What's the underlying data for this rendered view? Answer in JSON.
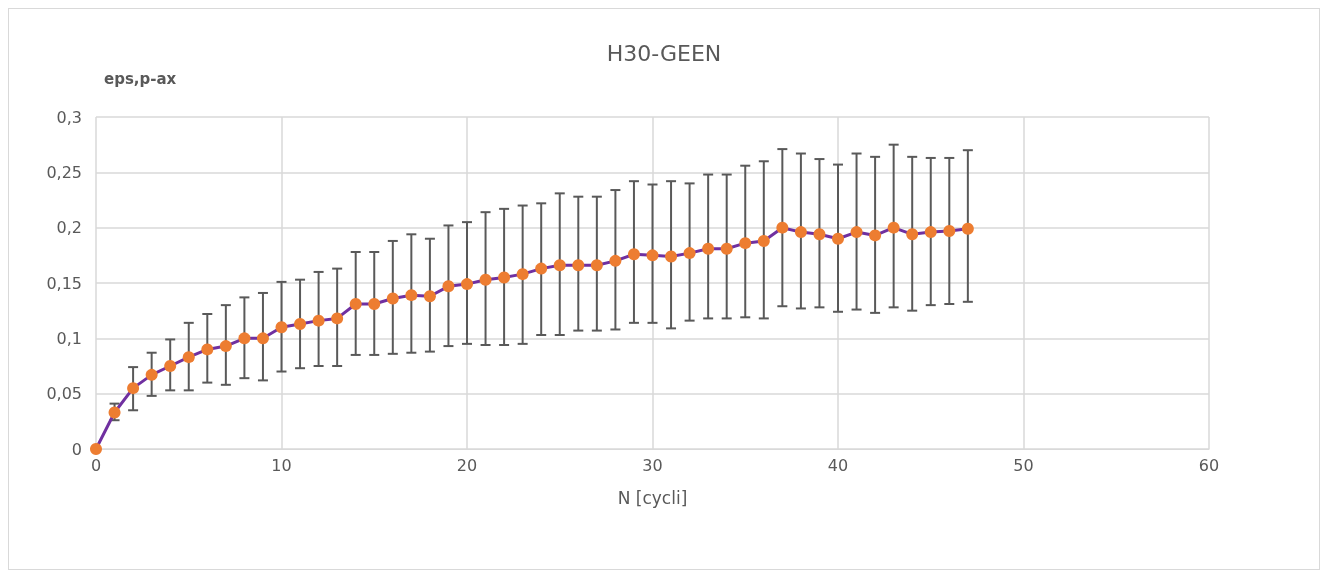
{
  "chart_data": {
    "type": "line",
    "title": "H30-GEEN",
    "xlabel": "N [cycli]",
    "ylabel": "eps,p-ax",
    "x": [
      0,
      1,
      2,
      3,
      4,
      5,
      6,
      7,
      8,
      9,
      10,
      11,
      12,
      13,
      14,
      15,
      16,
      17,
      18,
      19,
      20,
      21,
      22,
      23,
      24,
      25,
      26,
      27,
      28,
      29,
      30,
      31,
      32,
      33,
      34,
      35,
      36,
      37,
      38,
      39,
      40,
      41,
      42,
      43,
      44,
      45,
      46,
      47
    ],
    "series": [
      {
        "color": "#7030a0",
        "colors": [
          "#ed7d31",
          "#ed7d31",
          "#ed7d31",
          "#ed7d31",
          "#ed7d31",
          "#ed7d31",
          "#ed7d31",
          "#ed7d31",
          "#ed7d31",
          "#ed7d31",
          "#ed7d31",
          "#ed7d31",
          "#ed7d31",
          "#ed7d31",
          "#ed7d31",
          "#ed7d31",
          "#ed7d31",
          "#ed7d31",
          "#ed7d31",
          "#ed7d31",
          "#ed7d31",
          "#ed7d31",
          "#ed7d31",
          "#ed7d31",
          "#ed7d31",
          "#ed7d31",
          "#ed7d31",
          "#ed7d31",
          "#ed7d31",
          "#ed7d31",
          "#ed7d31",
          "#ed7d31",
          "#ed7d31",
          "#ed7d31",
          "#ed7d31",
          "#ed7d31",
          "#ed7d31",
          "#ed7d31",
          "#ed7d31",
          "#ed7d31",
          "#ed7d31",
          "#ed7d31",
          "#ed7d31",
          "#ed7d31",
          "#ed7d31",
          "#ed7d31",
          "#ed7d31",
          "#ed7d31"
        ],
        "values": [
          0,
          0.033,
          0.055,
          0.067,
          0.075,
          0.083,
          0.09,
          0.093,
          0.1,
          0.1,
          0.11,
          0.113,
          0.116,
          0.118,
          0.131,
          0.131,
          0.136,
          0.139,
          0.138,
          0.147,
          0.149,
          0.153,
          0.155,
          0.158,
          0.163,
          0.166,
          0.166,
          0.166,
          0.17,
          0.176,
          0.175,
          0.174,
          0.177,
          0.181,
          0.181,
          0.186,
          0.188,
          0.2,
          0.196,
          0.194,
          0.19,
          0.196,
          0.193,
          0.2,
          0.194,
          0.196,
          0.197,
          0.199
        ],
        "errors": [
          null,
          [
            0.026,
            0.041
          ],
          [
            0.035,
            0.074
          ],
          [
            0.048,
            0.087
          ],
          [
            0.053,
            0.099
          ],
          [
            0.053,
            0.114
          ],
          [
            0.06,
            0.122
          ],
          [
            0.058,
            0.13
          ],
          [
            0.064,
            0.137
          ],
          [
            0.062,
            0.141
          ],
          [
            0.07,
            0.151
          ],
          [
            0.073,
            0.153
          ],
          [
            0.075,
            0.16
          ],
          [
            0.075,
            0.163
          ],
          [
            0.085,
            0.178
          ],
          [
            0.085,
            0.178
          ],
          [
            0.086,
            0.188
          ],
          [
            0.087,
            0.194
          ],
          [
            0.088,
            0.19
          ],
          [
            0.093,
            0.202
          ],
          [
            0.095,
            0.205
          ],
          [
            0.094,
            0.214
          ],
          [
            0.094,
            0.217
          ],
          [
            0.095,
            0.22
          ],
          [
            0.103,
            0.222
          ],
          [
            0.103,
            0.231
          ],
          [
            0.107,
            0.228
          ],
          [
            0.107,
            0.228
          ],
          [
            0.108,
            0.234
          ],
          [
            0.114,
            0.242
          ],
          [
            0.114,
            0.239
          ],
          [
            0.109,
            0.242
          ],
          [
            0.116,
            0.24
          ],
          [
            0.118,
            0.248
          ],
          [
            0.118,
            0.248
          ],
          [
            0.119,
            0.256
          ],
          [
            0.118,
            0.26
          ],
          [
            0.129,
            0.271
          ],
          [
            0.127,
            0.267
          ],
          [
            0.128,
            0.262
          ],
          [
            0.124,
            0.257
          ],
          [
            0.126,
            0.267
          ],
          [
            0.123,
            0.264
          ],
          [
            0.128,
            0.275
          ],
          [
            0.125,
            0.264
          ],
          [
            0.13,
            0.263
          ],
          [
            0.131,
            0.263
          ],
          [
            0.133,
            0.27
          ]
        ]
      }
    ],
    "xlim": [
      0,
      60
    ],
    "xticks": [
      0,
      10,
      20,
      30,
      40,
      50,
      60
    ],
    "ylim": [
      0,
      0.3
    ],
    "yticks": [
      {
        "value": 0,
        "label": "0"
      },
      {
        "value": 0.05,
        "label": "0,05"
      },
      {
        "value": 0.1,
        "label": "0,1"
      },
      {
        "value": 0.15,
        "label": "0,15"
      },
      {
        "value": 0.2,
        "label": "0,2"
      },
      {
        "value": 0.25,
        "label": "0,25"
      },
      {
        "value": 0.3,
        "label": "0,3"
      }
    ],
    "grid": true,
    "marker": "circle",
    "line_style": "solid"
  }
}
